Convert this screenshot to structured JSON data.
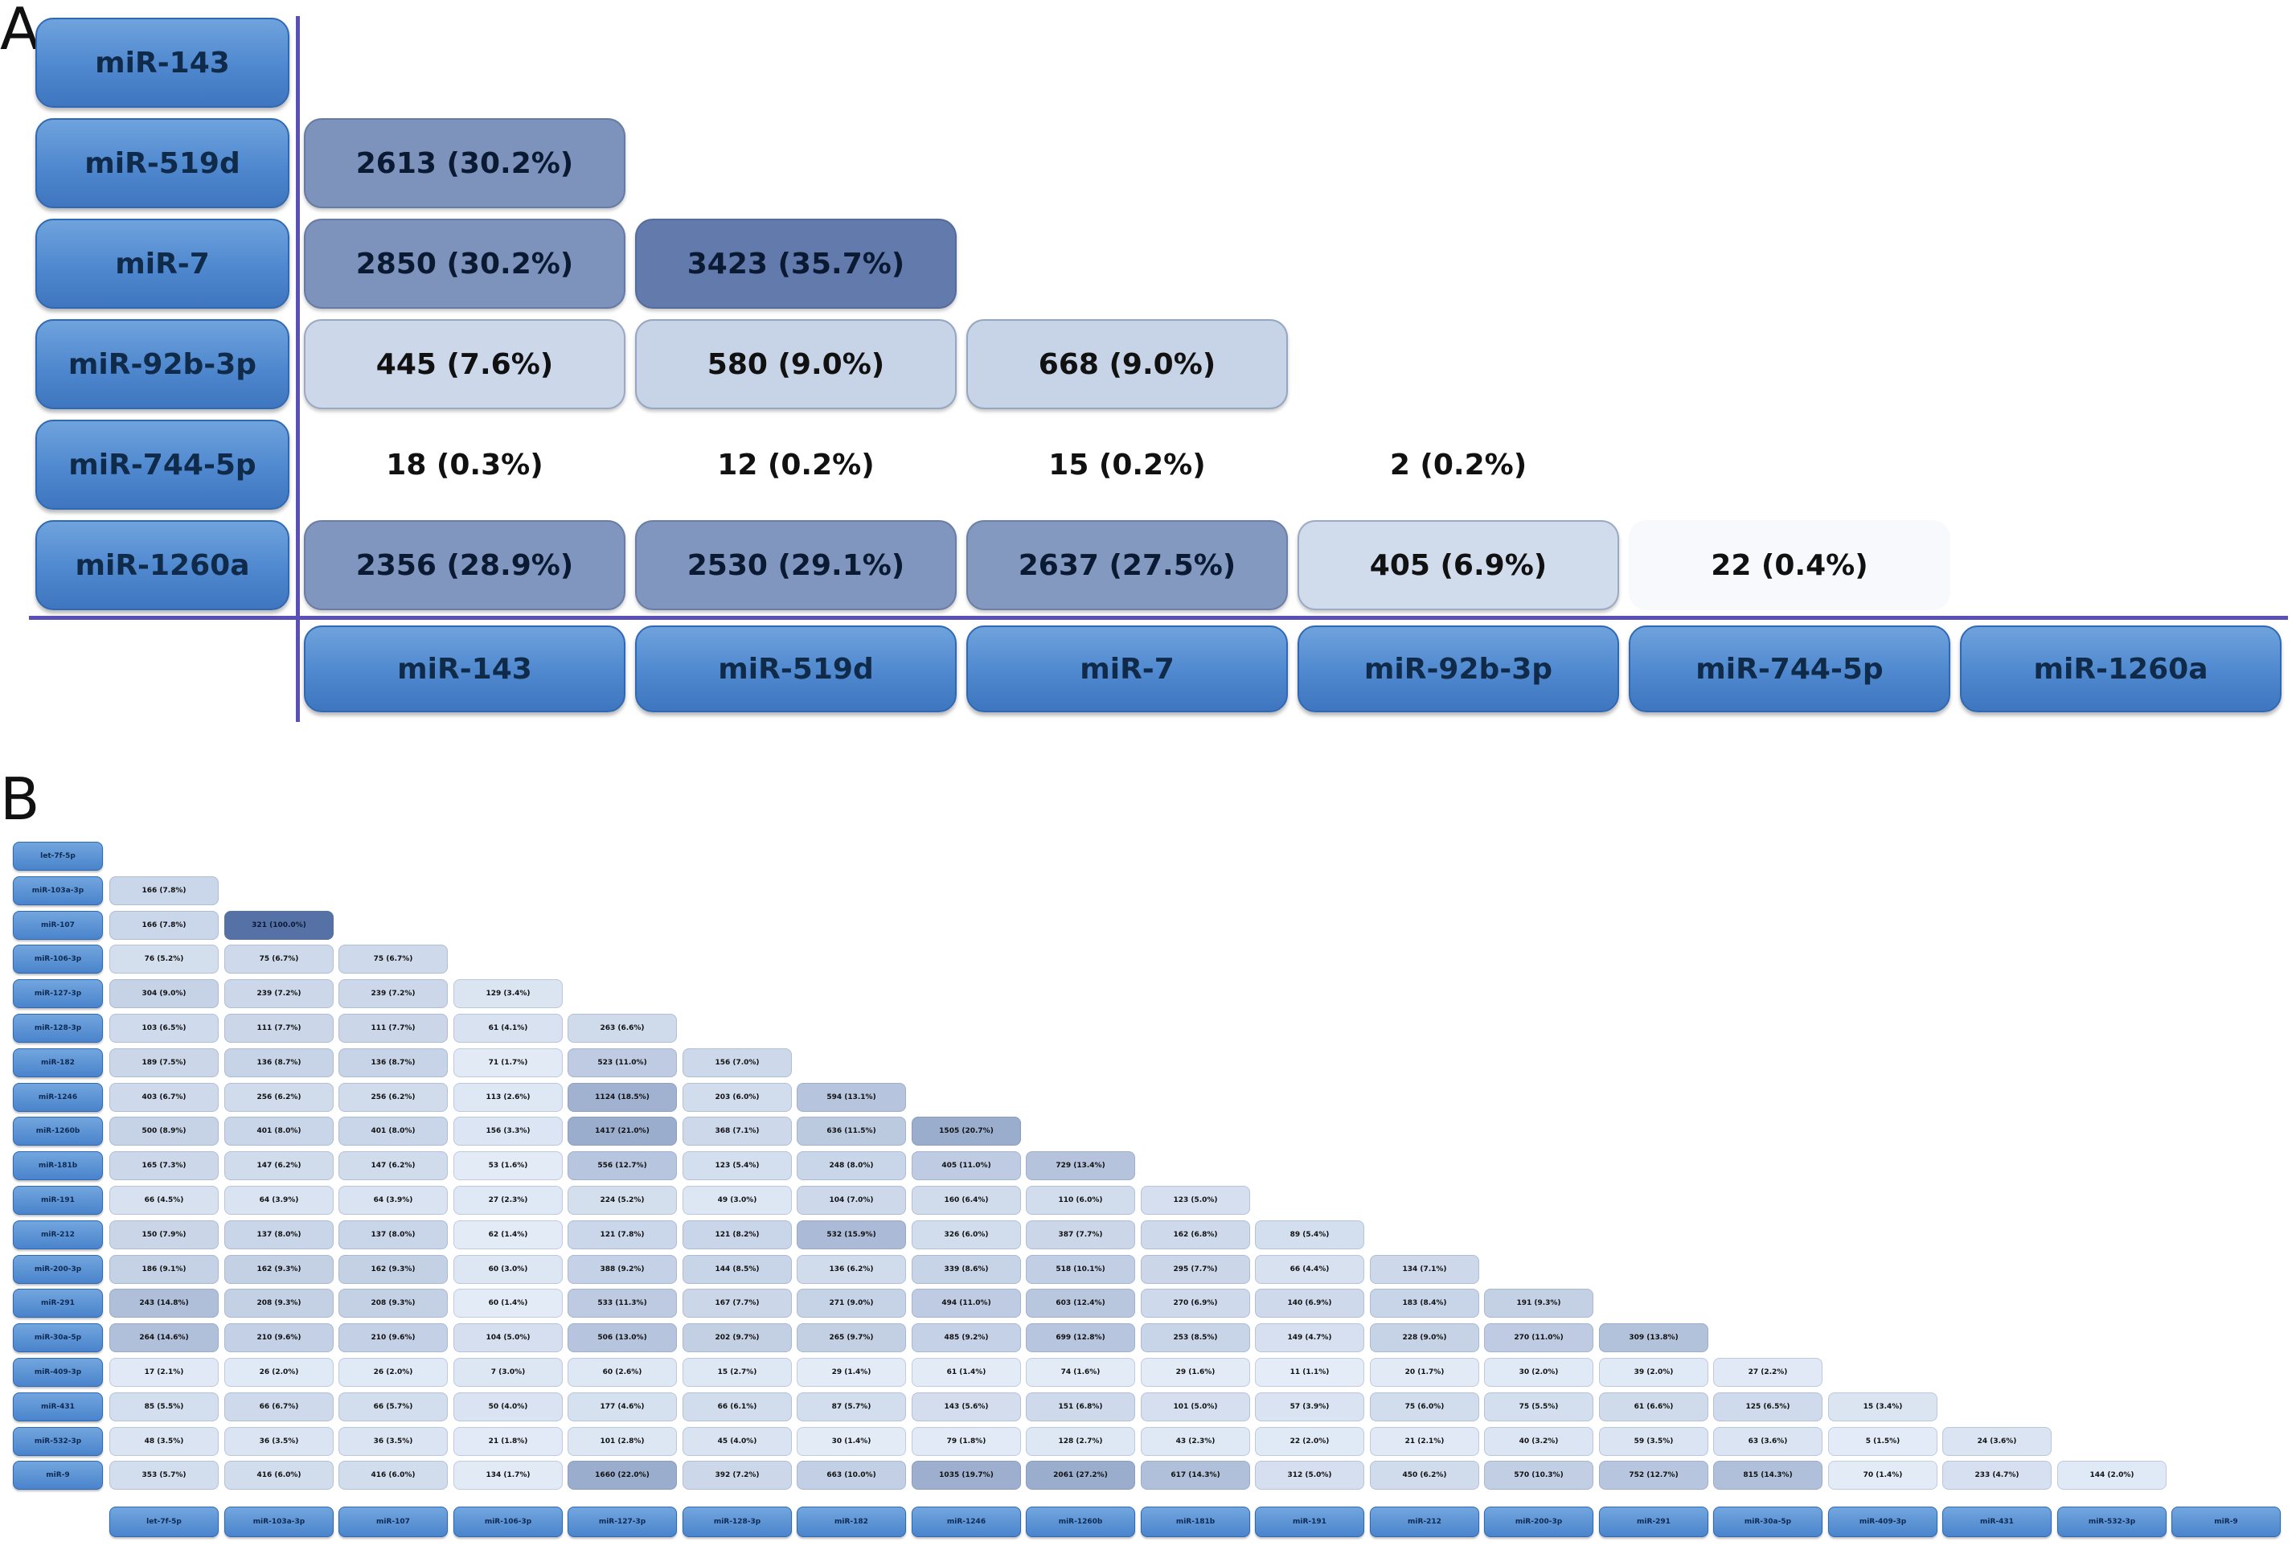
{
  "panel_a": {
    "label": "A",
    "rows": [
      "miR-143",
      "miR-519d",
      "miR-7",
      "miR-92b-3p",
      "miR-744-5p",
      "miR-1260a"
    ],
    "cols": [
      "miR-143",
      "miR-519d",
      "miR-7",
      "miR-92b-3p",
      "miR-744-5p",
      "miR-1260a"
    ],
    "cells": [
      [],
      [
        "2613 (30.2%)"
      ],
      [
        "2850 (30.2%)",
        "3423 (35.7%)"
      ],
      [
        "445 (7.6%)",
        "580 (9.0%)",
        "668 (9.0%)"
      ],
      [
        "18 (0.3%)",
        "12 (0.2%)",
        "15 (0.2%)",
        "2 (0.2%)"
      ],
      [
        "2356 (28.9%)",
        "2530 (29.1%)",
        "2637 (27.5%)",
        "405 (6.9%)",
        "22 (0.4%)"
      ]
    ],
    "shade": [
      [],
      [
        0.62
      ],
      [
        0.62,
        0.78
      ],
      [
        0.16,
        0.19,
        0.19
      ],
      [
        0,
        0,
        0,
        0
      ],
      [
        0.6,
        0.6,
        0.58,
        0.14,
        0.01
      ]
    ]
  },
  "panel_b": {
    "label": "B",
    "rows": [
      "let-7f-5p",
      "miR-103a-3p",
      "miR-107",
      "miR-106-3p",
      "miR-127-3p",
      "miR-128-3p",
      "miR-182",
      "miR-1246",
      "miR-1260b",
      "miR-181b",
      "miR-191",
      "miR-212",
      "miR-200-3p",
      "miR-291",
      "miR-30a-5p",
      "miR-409-3p",
      "miR-431",
      "miR-532-3p",
      "miR-9"
    ],
    "cols": [
      "let-7f-5p",
      "miR-103a-3p",
      "miR-107",
      "miR-106-3p",
      "miR-127-3p",
      "miR-128-3p",
      "miR-182",
      "miR-1246",
      "miR-1260b",
      "miR-181b",
      "miR-191",
      "miR-212",
      "miR-200-3p",
      "miR-291",
      "miR-30a-5p",
      "miR-409-3p",
      "miR-431",
      "miR-532-3p",
      "miR-9"
    ],
    "cells": [
      [],
      [
        "166 (7.8%)"
      ],
      [
        "166 (7.8%)",
        "321 (100.0%)"
      ],
      [
        "76 (5.2%)",
        "75 (6.7%)",
        "75 (6.7%)"
      ],
      [
        "304 (9.0%)",
        "239 (7.2%)",
        "239 (7.2%)",
        "129 (3.4%)"
      ],
      [
        "103 (6.5%)",
        "111 (7.7%)",
        "111 (7.7%)",
        "61 (4.1%)",
        "263 (6.6%)"
      ],
      [
        "189 (7.5%)",
        "136 (8.7%)",
        "136 (8.7%)",
        "71 (1.7%)",
        "523 (11.0%)",
        "156 (7.0%)"
      ],
      [
        "403 (6.7%)",
        "256 (6.2%)",
        "256 (6.2%)",
        "113 (2.6%)",
        "1124 (18.5%)",
        "203 (6.0%)",
        "594 (13.1%)"
      ],
      [
        "500 (8.9%)",
        "401 (8.0%)",
        "401 (8.0%)",
        "156 (3.3%)",
        "1417 (21.0%)",
        "368 (7.1%)",
        "636 (11.5%)",
        "1505 (20.7%)"
      ],
      [
        "165 (7.3%)",
        "147 (6.2%)",
        "147 (6.2%)",
        "53 (1.6%)",
        "556 (12.7%)",
        "123 (5.4%)",
        "248 (8.0%)",
        "405 (11.0%)",
        "729 (13.4%)"
      ],
      [
        "66 (4.5%)",
        "64 (3.9%)",
        "64 (3.9%)",
        "27 (2.3%)",
        "224 (5.2%)",
        "49 (3.0%)",
        "104 (7.0%)",
        "160 (6.4%)",
        "110 (6.0%)",
        "123 (5.0%)"
      ],
      [
        "150 (7.9%)",
        "137 (8.0%)",
        "137 (8.0%)",
        "62 (1.4%)",
        "121 (7.8%)",
        "121 (8.2%)",
        "532 (15.9%)",
        "326 (6.0%)",
        "387 (7.7%)",
        "162 (6.8%)",
        "89 (5.4%)"
      ],
      [
        "186 (9.1%)",
        "162 (9.3%)",
        "162 (9.3%)",
        "60 (3.0%)",
        "388 (9.2%)",
        "144 (8.5%)",
        "136 (6.2%)",
        "339 (8.6%)",
        "518 (10.1%)",
        "295 (7.7%)",
        "66 (4.4%)",
        "134 (7.1%)"
      ],
      [
        "243 (14.8%)",
        "208 (9.3%)",
        "208 (9.3%)",
        "60 (1.4%)",
        "533 (11.3%)",
        "167 (7.7%)",
        "271 (9.0%)",
        "494 (11.0%)",
        "603 (12.4%)",
        "270 (6.9%)",
        "140 (6.9%)",
        "183 (8.4%)",
        "191 (9.3%)"
      ],
      [
        "264 (14.6%)",
        "210 (9.6%)",
        "210 (9.6%)",
        "104 (5.0%)",
        "506 (13.0%)",
        "202 (9.7%)",
        "265 (9.7%)",
        "485 (9.2%)",
        "699 (12.8%)",
        "253 (8.5%)",
        "149 (4.7%)",
        "228 (9.0%)",
        "270 (11.0%)",
        "309 (13.8%)"
      ],
      [
        "17 (2.1%)",
        "26 (2.0%)",
        "26 (2.0%)",
        "7 (3.0%)",
        "60 (2.6%)",
        "15 (2.7%)",
        "29 (1.4%)",
        "61 (1.4%)",
        "74 (1.6%)",
        "29 (1.6%)",
        "11 (1.1%)",
        "20 (1.7%)",
        "30 (2.0%)",
        "39 (2.0%)",
        "27 (2.2%)"
      ],
      [
        "85 (5.5%)",
        "66 (6.7%)",
        "66 (5.7%)",
        "50 (4.0%)",
        "177 (4.6%)",
        "66 (6.1%)",
        "87 (5.7%)",
        "143 (5.6%)",
        "151 (6.8%)",
        "101 (5.0%)",
        "57 (3.9%)",
        "75 (6.0%)",
        "75 (5.5%)",
        "61 (6.6%)",
        "125 (6.5%)",
        "15 (3.4%)"
      ],
      [
        "48 (3.5%)",
        "36 (3.5%)",
        "36 (3.5%)",
        "21 (1.8%)",
        "101 (2.8%)",
        "45 (4.0%)",
        "30 (1.4%)",
        "79 (1.8%)",
        "128 (2.7%)",
        "43 (2.3%)",
        "22 (2.0%)",
        "21 (2.1%)",
        "40 (3.2%)",
        "59 (3.5%)",
        "63 (3.6%)",
        "5 (1.5%)",
        "24 (3.6%)"
      ],
      [
        "353 (5.7%)",
        "416 (6.0%)",
        "416 (6.0%)",
        "134 (1.7%)",
        "1660 (22.0%)",
        "392 (7.2%)",
        "663 (10.0%)",
        "1035 (19.7%)",
        "2061 (27.2%)",
        "617 (14.3%)",
        "312 (5.0%)",
        "450 (6.2%)",
        "570 (10.3%)",
        "752 (12.7%)",
        "815 (14.3%)",
        "70 (1.4%)",
        "233 (4.7%)",
        "144 (2.0%)"
      ]
    ]
  }
}
